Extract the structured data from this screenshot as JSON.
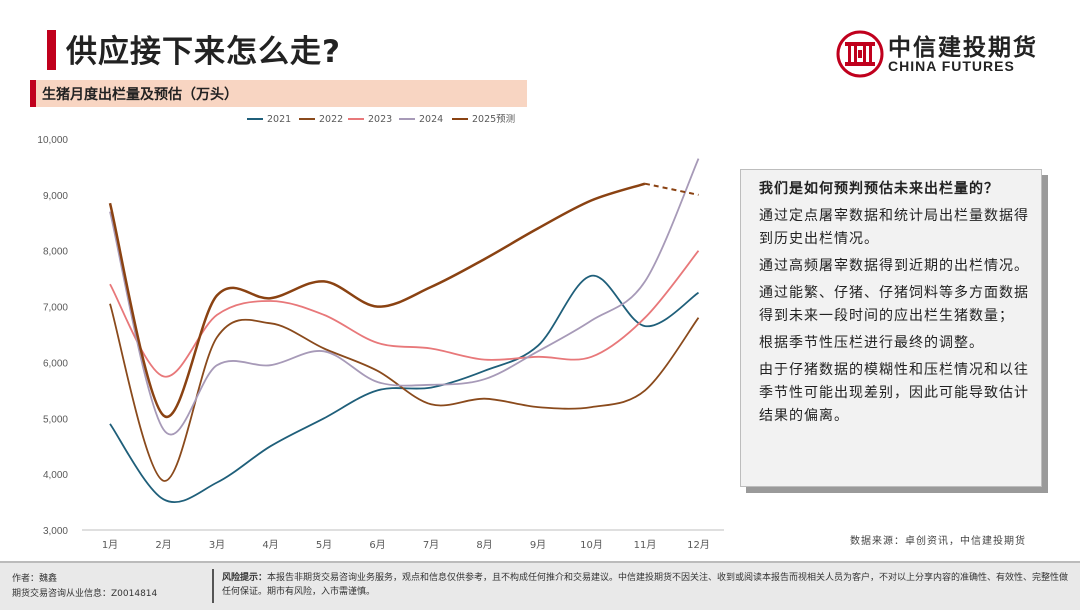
{
  "title": "供应接下来怎么走?",
  "subtitle": "生猪月度出栏量及预估（万头）",
  "logo": {
    "cn": "中信建投期货",
    "en": "CHINA FUTURES",
    "color": "#c0001d"
  },
  "chart_data": {
    "type": "line",
    "title": "",
    "xlabel": "",
    "ylabel": "",
    "ylim": [
      3000,
      10000
    ],
    "yticks": [
      3000,
      4000,
      5000,
      6000,
      7000,
      8000,
      9000,
      10000
    ],
    "ytick_labels": [
      "3,000",
      "4,000",
      "5,000",
      "6,000",
      "7,000",
      "8,000",
      "9,000",
      "10,000"
    ],
    "categories": [
      "1月",
      "2月",
      "3月",
      "4月",
      "5月",
      "6月",
      "7月",
      "8月",
      "9月",
      "10月",
      "11月",
      "12月"
    ],
    "legend_position": "top",
    "grid": false,
    "series": [
      {
        "name": "2021",
        "color": "#1f5f7a",
        "dashed_from": null,
        "values": [
          4900,
          3550,
          3850,
          4500,
          5000,
          5500,
          5550,
          5850,
          6300,
          7550,
          6650,
          7250
        ]
      },
      {
        "name": "2022",
        "color": "#8a4a1c",
        "dashed_from": null,
        "values": [
          7050,
          3880,
          6450,
          6700,
          6250,
          5850,
          5250,
          5350,
          5200,
          5200,
          5500,
          6800
        ]
      },
      {
        "name": "2023",
        "color": "#e8787a",
        "dashed_from": null,
        "values": [
          7400,
          5750,
          6850,
          7100,
          6850,
          6350,
          6250,
          6050,
          6100,
          6100,
          6800,
          8000
        ]
      },
      {
        "name": "2024",
        "color": "#a79ab8",
        "dashed_from": null,
        "values": [
          8700,
          4800,
          5950,
          5950,
          6200,
          5650,
          5600,
          5700,
          6200,
          6750,
          7450,
          9650
        ]
      },
      {
        "name": "2025预测",
        "color": "#8a4212",
        "dashed_from": 10,
        "values": [
          8850,
          5050,
          7200,
          7150,
          7450,
          7000,
          7350,
          7850,
          8400,
          8900,
          9200,
          9000
        ]
      }
    ]
  },
  "note": {
    "question": "我们是如何预判预估未来出栏量的？",
    "points": [
      "通过定点屠宰数据和统计局出栏量数据得到历史出栏情况。",
      "通过高频屠宰数据得到近期的出栏情况。",
      "通过能繁、仔猪、仔猪饲料等多方面数据得到未来一段时间的应出栏生猪数量；",
      "根据季节性压栏进行最终的调整。",
      "由于仔猪数据的模糊性和压栏情况和以往季节性可能出现差别，因此可能导致估计结果的偏离。"
    ]
  },
  "source": "数据来源：卓创资讯，中信建投期货",
  "footer": {
    "author": "作者：魏鑫",
    "license": "期货交易咨询从业信息：Z0014814",
    "risk_label": "风险提示：",
    "risk_text": "本报告非期货交易咨询业务服务，观点和信息仅供参考，且不构成任何推介和交易建议。中信建投期货不因关注、收到或阅读本报告而视相关人员为客户，不对以上分享内容的准确性、有效性、完整性做任何保证。期市有风险，入市需谨慎。"
  }
}
